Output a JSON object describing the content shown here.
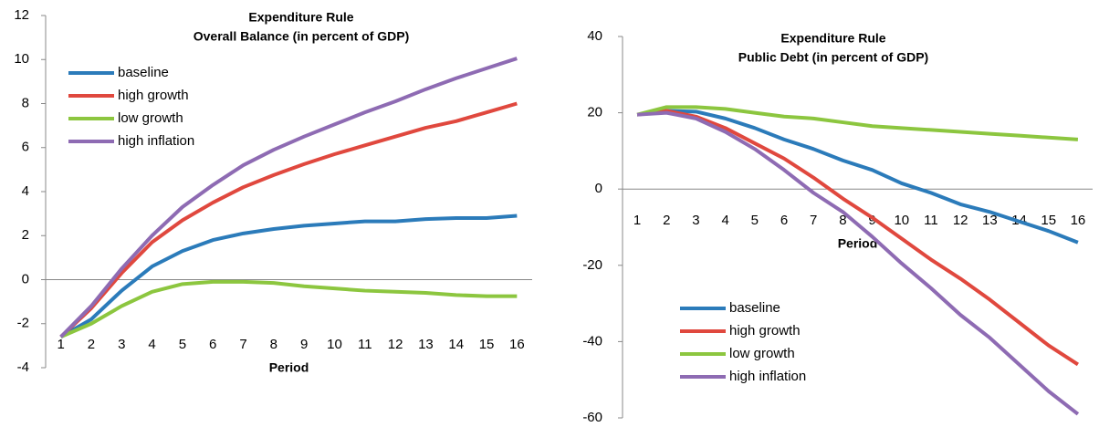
{
  "chart_data": [
    {
      "type": "line",
      "title": "Expenditure Rule",
      "subtitle": "Overall Balance (in percent of GDP)",
      "x_label": "Period",
      "categories": [
        "1",
        "2",
        "3",
        "4",
        "5",
        "6",
        "7",
        "8",
        "9",
        "10",
        "11",
        "12",
        "13",
        "14",
        "15",
        "16"
      ],
      "ylim": [
        -4,
        12
      ],
      "yticks": [
        -4,
        -2,
        0,
        2,
        4,
        6,
        8,
        10,
        12
      ],
      "legend": "upper left",
      "series": [
        {
          "name": "baseline",
          "color": "#2b7bba",
          "values": [
            -2.6,
            -1.8,
            -0.5,
            0.6,
            1.3,
            1.8,
            2.1,
            2.3,
            2.45,
            2.55,
            2.65,
            2.65,
            2.75,
            2.8,
            2.8,
            2.9
          ]
        },
        {
          "name": "high growth",
          "color": "#e0483e",
          "values": [
            -2.6,
            -1.3,
            0.3,
            1.7,
            2.7,
            3.5,
            4.2,
            4.75,
            5.25,
            5.7,
            6.1,
            6.5,
            6.9,
            7.2,
            7.6,
            8.0
          ]
        },
        {
          "name": "low growth",
          "color": "#8cc63f",
          "values": [
            -2.6,
            -2.0,
            -1.2,
            -0.55,
            -0.2,
            -0.1,
            -0.1,
            -0.15,
            -0.3,
            -0.4,
            -0.5,
            -0.55,
            -0.6,
            -0.7,
            -0.75,
            -0.75
          ]
        },
        {
          "name": "high inflation",
          "color": "#8e6bb3",
          "values": [
            -2.6,
            -1.2,
            0.5,
            2.0,
            3.3,
            4.3,
            5.2,
            5.9,
            6.5,
            7.05,
            7.6,
            8.1,
            8.65,
            9.15,
            9.6,
            10.05
          ]
        }
      ]
    },
    {
      "type": "line",
      "title": "Expenditure Rule",
      "subtitle": "Public Debt (in percent of GDP)",
      "x_label": "Period",
      "categories": [
        "1",
        "2",
        "3",
        "4",
        "5",
        "6",
        "7",
        "8",
        "9",
        "10",
        "11",
        "12",
        "13",
        "14",
        "15",
        "16"
      ],
      "ylim": [
        -60,
        40
      ],
      "yticks": [
        -60,
        -40,
        -20,
        0,
        20,
        40
      ],
      "legend": "lower left",
      "series": [
        {
          "name": "baseline",
          "color": "#2b7bba",
          "values": [
            19.5,
            20.5,
            20.3,
            18.5,
            16,
            13,
            10.5,
            7.5,
            5,
            1.5,
            -1,
            -4,
            -6,
            -8.5,
            -11,
            -14
          ]
        },
        {
          "name": "high growth",
          "color": "#e0483e",
          "values": [
            19.5,
            20.5,
            19,
            16,
            12,
            8,
            3,
            -2.5,
            -7.5,
            -13,
            -18.5,
            -23.5,
            -29,
            -35,
            -41,
            -46
          ]
        },
        {
          "name": "low growth",
          "color": "#8cc63f",
          "values": [
            19.5,
            21.5,
            21.5,
            21,
            20,
            19,
            18.5,
            17.5,
            16.5,
            16,
            15.5,
            15,
            14.5,
            14,
            13.5,
            13
          ]
        },
        {
          "name": "high inflation",
          "color": "#8e6bb3",
          "values": [
            19.5,
            20,
            18.5,
            15,
            10.5,
            5,
            -1,
            -6,
            -12.5,
            -19.5,
            -26,
            -33,
            -39,
            -46,
            -53,
            -59
          ]
        }
      ]
    }
  ]
}
